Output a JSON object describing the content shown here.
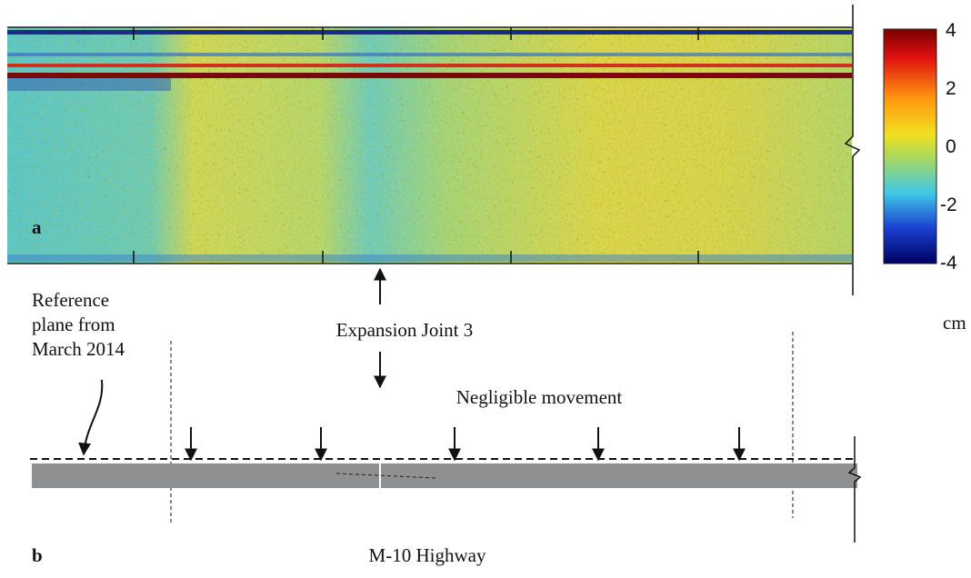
{
  "panel_a": {
    "label": "a",
    "colorbar": {
      "ticks": [
        "4",
        "2",
        "0",
        "-2",
        "-4"
      ],
      "unit": "cm"
    },
    "annotation": "Expansion Joint 3"
  },
  "panel_b": {
    "label": "b",
    "reference": [
      "Reference",
      "plane from",
      "March 2014"
    ],
    "movement": "Negligible movement",
    "caption": "M-10 Highway"
  }
}
